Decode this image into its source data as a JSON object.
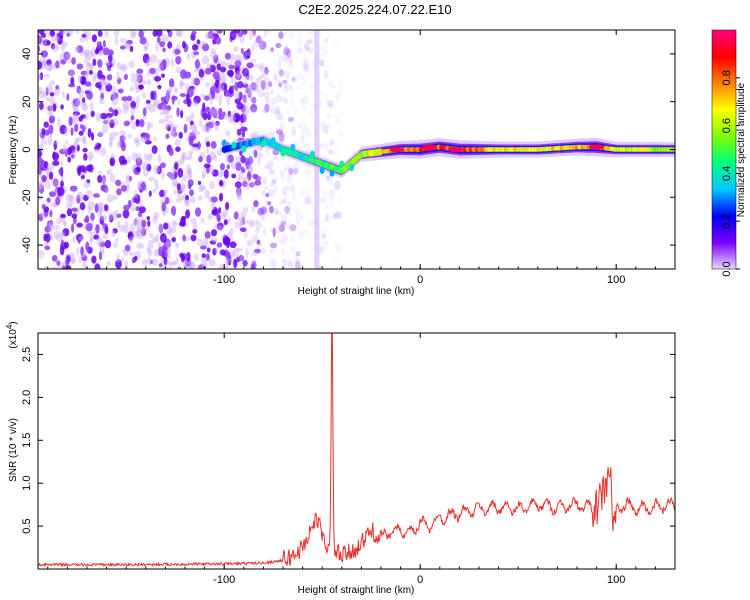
{
  "title": "C2E2.2025.224.07.22.E10",
  "chart_data": [
    {
      "type": "heatmap",
      "title": "C2E2.2025.224.07.22.E10",
      "xlabel": "Height of straight line (km)",
      "ylabel": "Frequency (Hz)",
      "xlim": [
        -195,
        130
      ],
      "ylim": [
        -50,
        50
      ],
      "x_ticks": [
        -100,
        0,
        100
      ],
      "x_tick_labels": [
        "-100",
        "0",
        "100"
      ],
      "y_ticks": [
        -40,
        -20,
        0,
        20,
        40
      ],
      "y_tick_labels": [
        "-40",
        "-20",
        "0",
        "20",
        "40"
      ],
      "colorbar": {
        "label": "Normalized spectral amplitude",
        "range": [
          0,
          1
        ],
        "ticks": [
          0.0,
          0.2,
          0.4,
          0.6,
          0.8
        ],
        "tick_labels": [
          "0.0",
          "0.2",
          "0.4",
          "0.6",
          "0.8"
        ],
        "colormap": [
          "#e8d8ff",
          "#7a00ff",
          "#0000ff",
          "#00c8ff",
          "#00ff80",
          "#80ff00",
          "#ffff00",
          "#ff8000",
          "#ff0000",
          "#ff0080"
        ]
      },
      "noise_region": {
        "x_range": [
          -195,
          -70
        ],
        "freq_range": [
          -50,
          50
        ],
        "level": 0.12
      },
      "vertical_stripe_x": -53,
      "ridge": {
        "x": [
          -100,
          -90,
          -80,
          -70,
          -60,
          -50,
          -40,
          -30,
          -20,
          -10,
          0,
          10,
          20,
          40,
          60,
          80,
          90,
          100,
          130
        ],
        "freq": [
          0,
          2,
          4,
          0,
          -3,
          -6,
          -9,
          -2,
          -1,
          0,
          0,
          1,
          0,
          0,
          0,
          1,
          1,
          0,
          0
        ],
        "amplitude": [
          0.25,
          0.3,
          0.35,
          0.4,
          0.45,
          0.5,
          0.55,
          0.6,
          0.7,
          0.8,
          0.9,
          0.85,
          0.9,
          0.7,
          0.7,
          0.75,
          0.9,
          0.65,
          0.6
        ]
      },
      "peaks": [
        {
          "x": -12,
          "freq": 0,
          "amplitude": 0.95
        },
        {
          "x": 5,
          "freq": 1,
          "amplitude": 0.95
        },
        {
          "x": 18,
          "freq": 0,
          "amplitude": 0.95
        },
        {
          "x": 90,
          "freq": 1,
          "amplitude": 0.95
        }
      ]
    },
    {
      "type": "line",
      "xlabel": "Height of straight line (km)",
      "ylabel": "SNR (10 * v/v)",
      "y_multiplier": "(x10",
      "y_multiplier_exp": "4",
      "y_multiplier_close": ")",
      "xlim": [
        -195,
        130
      ],
      "ylim": [
        0,
        2.75
      ],
      "x_ticks": [
        -100,
        0,
        100
      ],
      "x_tick_labels": [
        "-100",
        "0",
        "100"
      ],
      "y_ticks": [
        0.5,
        1.0,
        1.5,
        2.0,
        2.5
      ],
      "y_tick_labels": [
        "0.5",
        "1.0",
        "1.5",
        "2.0",
        "2.5"
      ],
      "line_color": "#e8312b",
      "series": [
        {
          "x": [
            -195,
            -150,
            -100,
            -80,
            -70,
            -65,
            -60,
            -57,
            -55,
            -52,
            -50,
            -48,
            -46,
            -45,
            -44,
            -43,
            -40,
            -35,
            -30,
            -25,
            -20,
            -15,
            -10,
            -5,
            0,
            5,
            10,
            20,
            30,
            40,
            50,
            60,
            70,
            80,
            90,
            95,
            97,
            98,
            100,
            105,
            110,
            120,
            130
          ],
          "y": [
            0.05,
            0.05,
            0.06,
            0.07,
            0.1,
            0.15,
            0.25,
            0.4,
            0.5,
            0.6,
            0.35,
            0.3,
            0.2,
            2.7,
            0.25,
            0.2,
            0.15,
            0.2,
            0.3,
            0.45,
            0.35,
            0.45,
            0.45,
            0.4,
            0.55,
            0.5,
            0.6,
            0.65,
            0.7,
            0.72,
            0.7,
            0.75,
            0.72,
            0.75,
            0.7,
            1.0,
            1.2,
            0.45,
            0.7,
            0.75,
            0.7,
            0.72,
            0.75
          ]
        }
      ]
    }
  ]
}
